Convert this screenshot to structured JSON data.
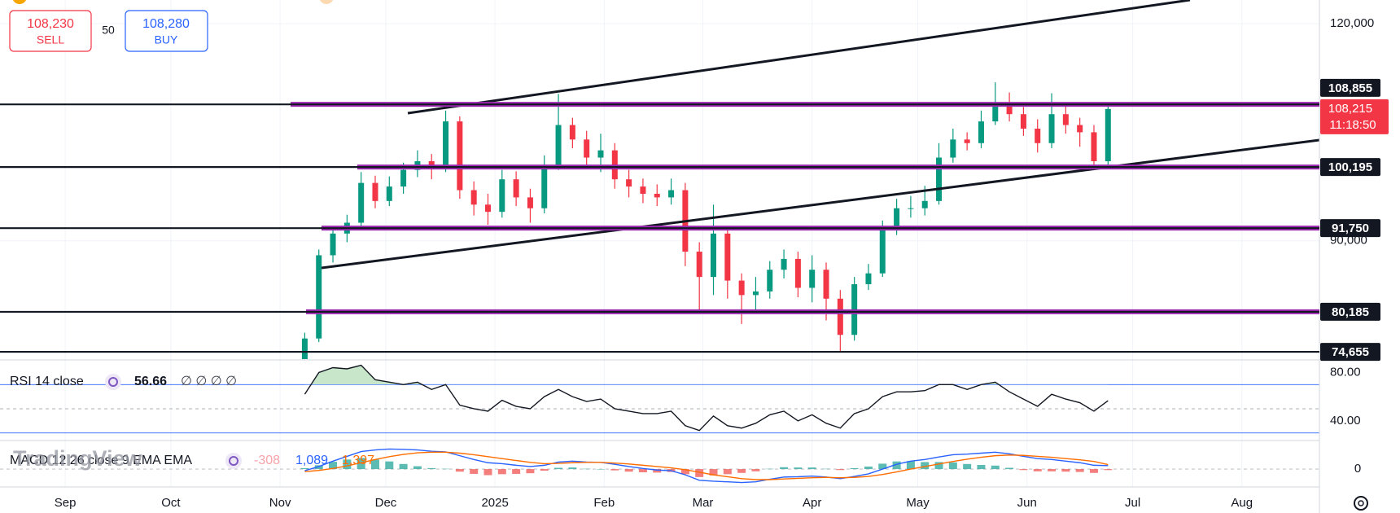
{
  "ui": {
    "sell_price": "108,230",
    "sell_label": "SELL",
    "spread": "50",
    "buy_price": "108,280",
    "buy_label": "BUY",
    "watermark": "TradingView"
  },
  "chart_data": [
    {
      "type": "candlestick",
      "x": [
        68,
        72,
        76,
        80,
        84,
        88,
        92,
        96,
        100,
        104,
        108,
        112,
        116,
        120,
        124,
        128,
        132,
        136,
        140,
        144,
        148,
        152,
        156,
        160,
        164,
        168,
        172,
        176,
        180,
        184,
        188,
        192,
        196,
        200,
        204,
        208,
        212,
        216,
        220,
        224,
        228,
        232,
        236,
        240,
        244,
        248,
        252,
        256,
        260,
        264,
        268,
        272,
        276,
        280,
        284,
        288,
        292,
        296
      ],
      "open": [
        72500,
        76500,
        88000,
        91000,
        92500,
        98000,
        95500,
        97500,
        99800,
        101000,
        100000,
        106500,
        97000,
        95000,
        94000,
        98500,
        96000,
        94500,
        100500,
        106000,
        104000,
        101500,
        102500,
        98500,
        97500,
        96500,
        96000,
        97000,
        88500,
        85000,
        91000,
        84500,
        82500,
        83000,
        86000,
        87500,
        83500,
        86000,
        82000,
        77000,
        84000,
        85500,
        91500,
        94500,
        94500,
        95500,
        101500,
        104000,
        103500,
        106500,
        109000,
        107500,
        105500,
        103500,
        107500,
        106000,
        105000,
        101000
      ],
      "high": [
        77300,
        88800,
        92000,
        93600,
        99500,
        99000,
        98900,
        100800,
        102500,
        102000,
        108000,
        107200,
        98200,
        96500,
        99800,
        99600,
        97200,
        101800,
        110300,
        107000,
        105200,
        104800,
        103500,
        99800,
        98600,
        97800,
        98600,
        98000,
        89800,
        95000,
        92000,
        85500,
        85000,
        87200,
        88800,
        88500,
        88000,
        87000,
        83200,
        85000,
        86800,
        92800,
        95800,
        96200,
        97600,
        103500,
        105500,
        105000,
        108000,
        111900,
        110500,
        108500,
        106800,
        110400,
        108800,
        107000,
        106000,
        108900
      ],
      "low": [
        71800,
        76000,
        87000,
        89800,
        91800,
        94500,
        94800,
        96500,
        98800,
        98500,
        99500,
        95800,
        93500,
        92200,
        93200,
        94800,
        92500,
        93800,
        99800,
        102800,
        100200,
        99500,
        97200,
        96000,
        95200,
        94800,
        95000,
        86500,
        80500,
        82500,
        82000,
        78500,
        80500,
        82000,
        84800,
        82200,
        81500,
        79000,
        74600,
        76200,
        83200,
        85000,
        90800,
        93200,
        93500,
        95000,
        100800,
        102500,
        102800,
        106000,
        106500,
        104500,
        102200,
        102800,
        104800,
        103000,
        99800,
        100500
      ],
      "close": [
        76500,
        88000,
        91000,
        92500,
        98000,
        95500,
        97500,
        99800,
        101000,
        100000,
        106500,
        97000,
        95000,
        94000,
        98500,
        96000,
        94500,
        100500,
        106000,
        104000,
        101500,
        102500,
        98500,
        97500,
        96500,
        96000,
        97000,
        88500,
        85000,
        91000,
        84500,
        82500,
        83000,
        86000,
        87500,
        83500,
        86000,
        82000,
        77000,
        84000,
        85500,
        91500,
        94500,
        94500,
        95500,
        101500,
        104000,
        103500,
        106500,
        109000,
        107500,
        105500,
        103500,
        107500,
        106000,
        105000,
        101000,
        108215
      ],
      "up_color": "#089981",
      "down_color": "#f23645",
      "xlim": [
        -18.5,
        356
      ],
      "xticks": [
        {
          "value": 0,
          "label": "Sep"
        },
        {
          "value": 30,
          "label": "Oct"
        },
        {
          "value": 61,
          "label": "Nov"
        },
        {
          "value": 91,
          "label": "Dec"
        },
        {
          "value": 122,
          "label": "2025"
        },
        {
          "value": 153,
          "label": "Feb"
        },
        {
          "value": 181,
          "label": "Mar"
        },
        {
          "value": 212,
          "label": "Apr"
        },
        {
          "value": 242,
          "label": "May"
        },
        {
          "value": 273,
          "label": "Jun"
        },
        {
          "value": 303,
          "label": "Jul"
        },
        {
          "value": 334,
          "label": "Aug"
        }
      ],
      "ylim": [
        73650,
        123280
      ],
      "yticks": [
        {
          "value": 120000,
          "label": "120,000"
        },
        {
          "value": 90000,
          "label": "90,000"
        }
      ],
      "price_levels": [
        {
          "value": 108855,
          "label": "108,855"
        },
        {
          "value": 100195,
          "label": "100,195"
        },
        {
          "value": 91750,
          "label": "91,750"
        },
        {
          "value": 80185,
          "label": "80,185"
        },
        {
          "value": 74655,
          "label": "74,655"
        }
      ],
      "level_color": "#9c27b0",
      "last_price": {
        "value": 108215,
        "label": "108,215"
      },
      "countdown": "11:18:50",
      "grid": true
    },
    {
      "type": "line",
      "title": "RSI 14 close",
      "placeholders": "∅ ∅ ∅ ∅",
      "x": [
        68,
        72,
        76,
        80,
        84,
        88,
        92,
        96,
        100,
        104,
        108,
        112,
        116,
        120,
        124,
        128,
        132,
        136,
        140,
        144,
        148,
        152,
        156,
        160,
        164,
        168,
        172,
        176,
        180,
        184,
        188,
        192,
        196,
        200,
        204,
        208,
        212,
        216,
        220,
        224,
        228,
        232,
        236,
        240,
        244,
        248,
        252,
        256,
        260,
        264,
        268,
        272,
        276,
        280,
        284,
        288,
        292,
        296
      ],
      "series": [
        {
          "color": "#131722",
          "values": [
            62,
            80,
            84,
            83,
            86,
            74,
            72,
            70,
            72,
            66,
            70,
            53,
            50,
            48,
            57,
            52,
            50,
            60,
            66,
            60,
            56,
            58,
            50,
            48,
            46,
            46,
            48,
            36,
            32,
            44,
            36,
            34,
            38,
            45,
            48,
            40,
            45,
            38,
            34,
            46,
            50,
            60,
            64,
            64,
            65,
            70,
            70,
            66,
            70,
            72,
            64,
            58,
            52,
            62,
            58,
            55,
            48,
            56.66
          ]
        }
      ],
      "ylim": [
        24.4,
        90.4
      ],
      "yticks": [
        {
          "value": 80,
          "label": "80.00"
        },
        {
          "value": 40,
          "label": "40.00"
        }
      ],
      "levels": [
        70,
        50,
        30
      ],
      "overbought_color": "#c8e6c9"
    },
    {
      "type": "macd",
      "title": "MACD 12 26 close 9 EMA EMA",
      "x": [
        68,
        72,
        76,
        80,
        84,
        88,
        92,
        96,
        100,
        104,
        108,
        112,
        116,
        120,
        124,
        128,
        132,
        136,
        140,
        144,
        148,
        152,
        156,
        160,
        164,
        168,
        172,
        176,
        180,
        184,
        188,
        192,
        196,
        200,
        204,
        208,
        212,
        216,
        220,
        224,
        228,
        232,
        236,
        240,
        244,
        248,
        252,
        256,
        260,
        264,
        268,
        272,
        276,
        280,
        284,
        288,
        292,
        296
      ],
      "histogram": {
        "up_color": "#26a69a",
        "down_color": "#ef5350",
        "values": [
          300,
          1200,
          2300,
          3000,
          3500,
          3000,
          2400,
          1600,
          900,
          300,
          100,
          -800,
          -1500,
          -1900,
          -1600,
          -1500,
          -1300,
          -500,
          400,
          500,
          100,
          0,
          -400,
          -800,
          -1000,
          -1100,
          -900,
          -1600,
          -2500,
          -2000,
          -1600,
          -1200,
          -700,
          100,
          600,
          500,
          500,
          100,
          -300,
          300,
          800,
          1700,
          2400,
          2500,
          2200,
          2200,
          2100,
          1600,
          1300,
          1100,
          400,
          -300,
          -700,
          -700,
          -800,
          -900,
          -1200,
          -308
        ]
      },
      "series": [
        {
          "color": "#2962ff",
          "values": [
            -500,
            800,
            2500,
            4000,
            5500,
            6000,
            6300,
            6200,
            6000,
            5600,
            5400,
            4200,
            3000,
            2000,
            1700,
            1200,
            800,
            1200,
            2200,
            2500,
            2200,
            2100,
            1500,
            800,
            200,
            -300,
            -500,
            -1800,
            -3500,
            -3800,
            -4000,
            -4200,
            -4000,
            -3200,
            -2500,
            -2400,
            -2200,
            -2500,
            -3000,
            -2300,
            -1500,
            0,
            1500,
            2500,
            3000,
            3800,
            4500,
            4700,
            5000,
            5300,
            4800,
            4000,
            3300,
            3000,
            2500,
            2000,
            1200,
            1089
          ],
          "value_labels": [
            null,
            null,
            null,
            null,
            null,
            null,
            null,
            null,
            null,
            null,
            null,
            null,
            null,
            null,
            null,
            null,
            null,
            null,
            null,
            null,
            null,
            null,
            null,
            null,
            null,
            null,
            null,
            null,
            null,
            null,
            null,
            null,
            null,
            null,
            null,
            null,
            null,
            null,
            null,
            null,
            null,
            null,
            null,
            null,
            null,
            null,
            null,
            null,
            null,
            null,
            null,
            null,
            null,
            null,
            null,
            null,
            null,
            "1,089"
          ]
        },
        {
          "color": "#ff6d00",
          "values": [
            -800,
            -400,
            200,
            1000,
            2000,
            3000,
            3900,
            4600,
            5100,
            5300,
            5300,
            5000,
            4500,
            3900,
            3300,
            2700,
            2100,
            1700,
            1800,
            2000,
            2100,
            2100,
            1900,
            1600,
            1200,
            800,
            400,
            -200,
            -1000,
            -1800,
            -2400,
            -3000,
            -3300,
            -3300,
            -3100,
            -2900,
            -2700,
            -2600,
            -2700,
            -2600,
            -2300,
            -1700,
            -900,
            0,
            800,
            1600,
            2400,
            3100,
            3700,
            4200,
            4400,
            4300,
            4000,
            3700,
            3300,
            2900,
            2400,
            1397
          ],
          "value_labels": [
            null,
            null,
            null,
            null,
            null,
            null,
            null,
            null,
            null,
            null,
            null,
            null,
            null,
            null,
            null,
            null,
            null,
            null,
            null,
            null,
            null,
            null,
            null,
            null,
            null,
            null,
            null,
            null,
            null,
            null,
            null,
            null,
            null,
            null,
            null,
            null,
            null,
            null,
            null,
            null,
            null,
            null,
            null,
            null,
            null,
            null,
            null,
            null,
            null,
            null,
            null,
            null,
            null,
            null,
            null,
            null,
            null,
            "1,397"
          ]
        }
      ],
      "ylim": [
        -5600,
        8960
      ],
      "yticks": [
        0
      ]
    }
  ]
}
